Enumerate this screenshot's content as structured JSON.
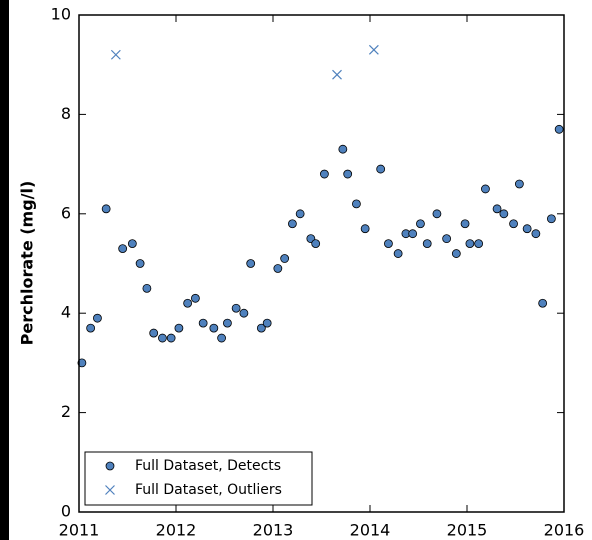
{
  "chart_data": {
    "type": "scatter",
    "ylabel": "Perchlorate (mg/l)",
    "xlim": [
      2011,
      2016
    ],
    "xticks": [
      2011,
      2012,
      2013,
      2014,
      2015,
      2016
    ],
    "ylim": [
      0,
      10
    ],
    "yticks": [
      0,
      2,
      4,
      6,
      8,
      10
    ],
    "legend": "lower left",
    "series": [
      {
        "name": "Full Dataset, Detects",
        "color": "#4f81bd",
        "marker": "o",
        "x": [
          2011.03,
          2011.12,
          2011.19,
          2011.28,
          2011.45,
          2011.55,
          2011.63,
          2011.7,
          2011.77,
          2011.86,
          2011.95,
          2012.03,
          2012.12,
          2012.2,
          2012.28,
          2012.39,
          2012.47,
          2012.53,
          2012.62,
          2012.7,
          2012.77,
          2012.88,
          2012.94,
          2013.05,
          2013.12,
          2013.2,
          2013.28,
          2013.39,
          2013.44,
          2013.53,
          2013.72,
          2013.77,
          2013.86,
          2013.95,
          2014.11,
          2014.19,
          2014.29,
          2014.37,
          2014.44,
          2014.52,
          2014.59,
          2014.69,
          2014.79,
          2014.89,
          2014.98,
          2015.03,
          2015.12,
          2015.19,
          2015.31,
          2015.38,
          2015.48,
          2015.54,
          2015.62,
          2015.71,
          2015.78,
          2015.87,
          2015.95
        ],
        "values": [
          3.0,
          3.7,
          3.9,
          6.1,
          5.3,
          5.4,
          5.0,
          4.5,
          3.6,
          3.5,
          3.5,
          3.7,
          4.2,
          4.3,
          3.8,
          3.7,
          3.5,
          3.8,
          4.1,
          4.0,
          5.0,
          3.7,
          3.8,
          4.9,
          5.1,
          5.8,
          6.0,
          5.5,
          5.4,
          6.8,
          7.3,
          6.8,
          6.2,
          5.7,
          6.9,
          5.4,
          5.2,
          5.6,
          5.6,
          5.8,
          5.4,
          6.0,
          5.5,
          5.2,
          5.8,
          5.4,
          5.4,
          6.5,
          6.1,
          6.0,
          5.8,
          6.6,
          5.7,
          5.6,
          4.2,
          5.9,
          7.7
        ]
      },
      {
        "name": "Full Dataset, Outliers",
        "color": "#4f81bd",
        "marker": "x",
        "x": [
          2011.38,
          2013.66,
          2014.04
        ],
        "values": [
          9.2,
          8.8,
          9.3
        ]
      }
    ]
  }
}
